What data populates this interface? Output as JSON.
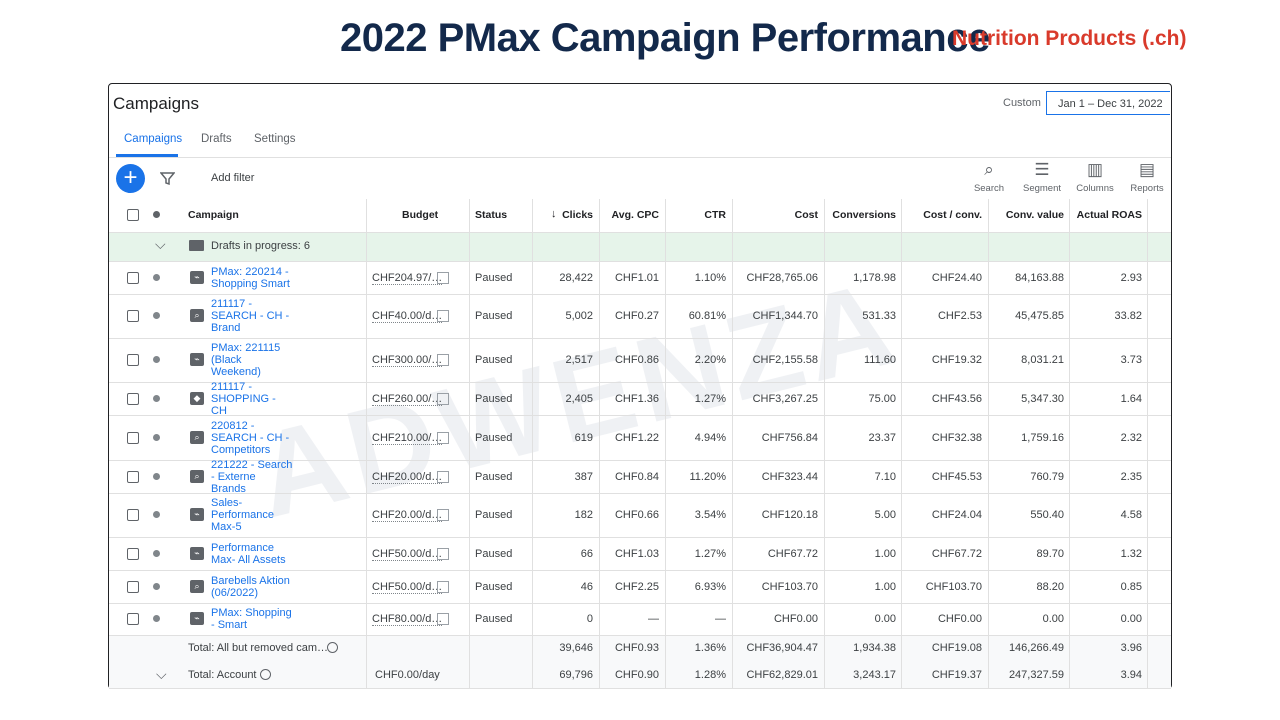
{
  "header": {
    "title": "2022 PMax Campaign Performance",
    "subtitle": "Nutrition Products (.ch)"
  },
  "panel": {
    "title": "Campaigns",
    "date_label": "Custom",
    "date_range": "Jan 1 – Dec 31, 2022"
  },
  "tabs": [
    "Campaigns",
    "Drafts",
    "Settings"
  ],
  "toolbar": {
    "filter": "Add filter",
    "tools": [
      "Search",
      "Segment",
      "Columns",
      "Reports"
    ]
  },
  "watermark": "ADWENZA",
  "table": {
    "columns": [
      "Campaign",
      "Budget",
      "Status",
      "Clicks",
      "Avg. CPC",
      "CTR",
      "Cost",
      "Conversions",
      "Cost / conv.",
      "Conv. value",
      "Actual ROAS"
    ],
    "drafts": "Drafts in progress: 6",
    "rows": [
      [
        "PMax: 220214 - Shopping Smart",
        "CHF204.97/…",
        "Paused",
        "28,422",
        "CHF1.01",
        "1.10%",
        "CHF28,765.06",
        "1,178.98",
        "CHF24.40",
        "84,163.88",
        "2.93"
      ],
      [
        "211117 - SEARCH - CH - Brand",
        "CHF40.00/d…",
        "Paused",
        "5,002",
        "CHF0.27",
        "60.81%",
        "CHF1,344.70",
        "531.33",
        "CHF2.53",
        "45,475.85",
        "33.82"
      ],
      [
        "PMax: 221115 (Black Weekend)",
        "CHF300.00/…",
        "Paused",
        "2,517",
        "CHF0.86",
        "2.20%",
        "CHF2,155.58",
        "111.60",
        "CHF19.32",
        "8,031.21",
        "3.73"
      ],
      [
        "211117 - SHOPPING - CH",
        "CHF260.00/…",
        "Paused",
        "2,405",
        "CHF1.36",
        "1.27%",
        "CHF3,267.25",
        "75.00",
        "CHF43.56",
        "5,347.30",
        "1.64"
      ],
      [
        "220812 - SEARCH - CH - Competitors",
        "CHF210.00/…",
        "Paused",
        "619",
        "CHF1.22",
        "4.94%",
        "CHF756.84",
        "23.37",
        "CHF32.38",
        "1,759.16",
        "2.32"
      ],
      [
        "221222 - Search - Externe Brands",
        "CHF20.00/d…",
        "Paused",
        "387",
        "CHF0.84",
        "11.20%",
        "CHF323.44",
        "7.10",
        "CHF45.53",
        "760.79",
        "2.35"
      ],
      [
        "Sales-Performance Max-5",
        "CHF20.00/d…",
        "Paused",
        "182",
        "CHF0.66",
        "3.54%",
        "CHF120.18",
        "5.00",
        "CHF24.04",
        "550.40",
        "4.58"
      ],
      [
        "Performance Max- All Assets",
        "CHF50.00/d…",
        "Paused",
        "66",
        "CHF1.03",
        "1.27%",
        "CHF67.72",
        "1.00",
        "CHF67.72",
        "89.70",
        "1.32"
      ],
      [
        "Barebells Aktion (06/2022)",
        "CHF50.00/d…",
        "Paused",
        "46",
        "CHF2.25",
        "6.93%",
        "CHF103.70",
        "1.00",
        "CHF103.70",
        "88.20",
        "0.85"
      ],
      [
        "PMax: Shopping - Smart",
        "CHF80.00/d…",
        "Paused",
        "0",
        "—",
        "—",
        "CHF0.00",
        "0.00",
        "CHF0.00",
        "0.00",
        "0.00"
      ]
    ],
    "totals": [
      {
        "label": "Total: All but removed cam…",
        "values": [
          "39,646",
          "CHF0.93",
          "1.36%",
          "CHF36,904.47",
          "1,934.38",
          "CHF19.08",
          "146,266.49",
          "3.96"
        ]
      },
      {
        "label": "Total: Account",
        "budget": "CHF0.00/day",
        "values": [
          "69,796",
          "CHF0.90",
          "1.28%",
          "CHF62,829.01",
          "3,243.17",
          "CHF19.37",
          "247,327.59",
          "3.94"
        ]
      }
    ]
  }
}
